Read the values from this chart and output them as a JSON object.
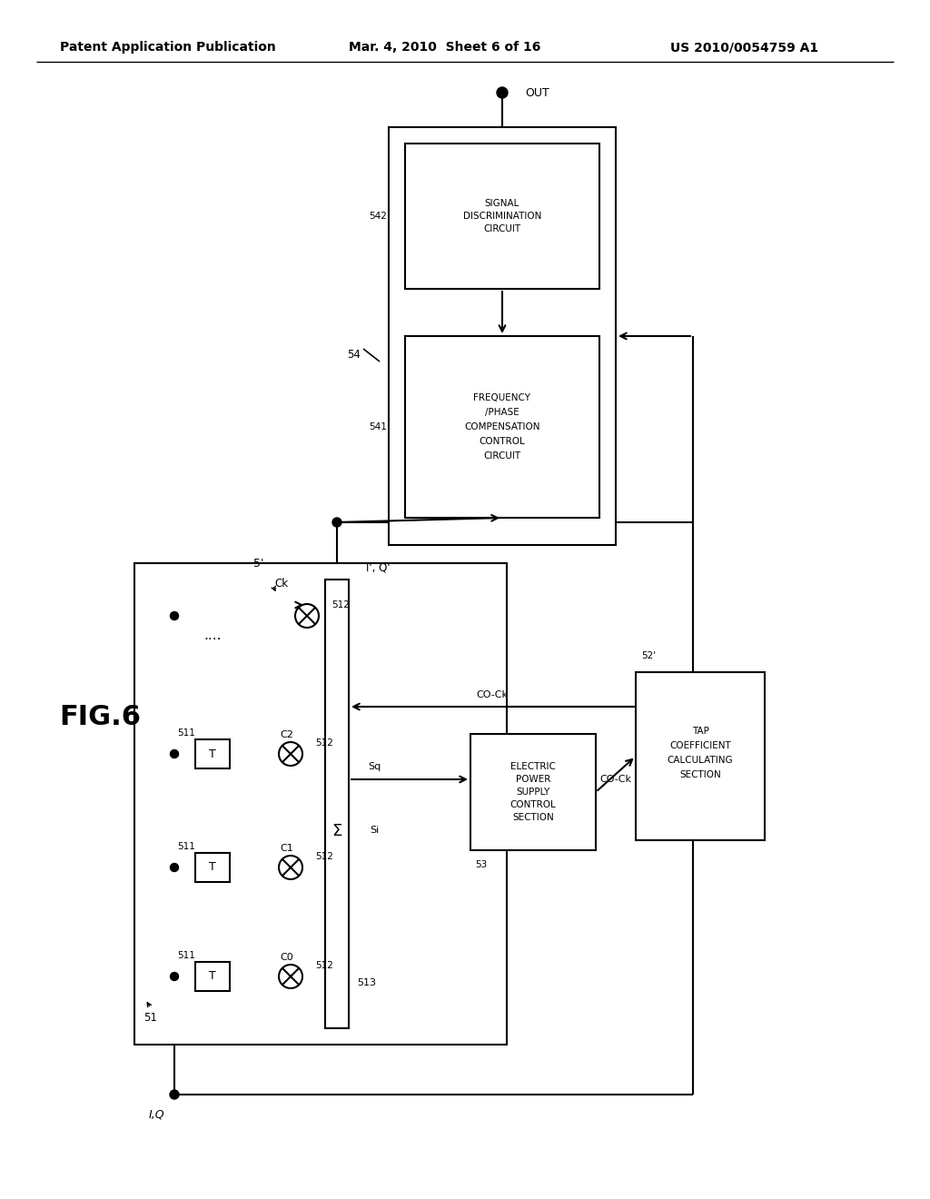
{
  "header_left": "Patent Application Publication",
  "header_mid": "Mar. 4, 2010  Sheet 6 of 16",
  "header_right": "US 2010/0054759 A1",
  "fig_label": "FIG.6",
  "bg_color": "#ffffff",
  "line_color": "#000000"
}
